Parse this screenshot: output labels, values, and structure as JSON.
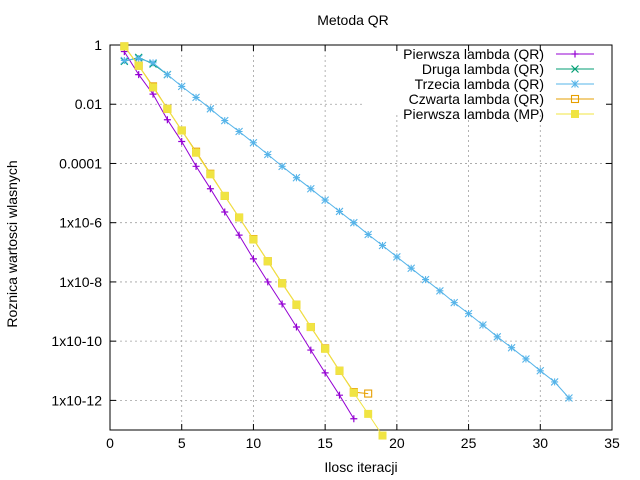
{
  "chart_data": {
    "type": "line",
    "title": "Metoda QR",
    "xlabel": "Ilosc iteracji",
    "ylabel": "Roznica wartosci wlasnych",
    "xlim": [
      0,
      35
    ],
    "ylim": [
      1e-13,
      1
    ],
    "yscale": "log",
    "grid": true,
    "legend_position": "top-right",
    "xticks": [
      0,
      5,
      10,
      15,
      20,
      25,
      30,
      35
    ],
    "xtick_labels": [
      "0",
      "5",
      "10",
      "15",
      "20",
      "25",
      "30",
      "35"
    ],
    "yticks": [
      1,
      0.01,
      0.0001,
      1e-06,
      1e-08,
      1e-10,
      1e-12
    ],
    "ytick_labels": [
      "1",
      "0.01",
      "0.0001",
      "1x10-6",
      "1x10-8",
      "1x10-10",
      "1x10-12"
    ],
    "series": [
      {
        "name": "Pierwsza lambda (QR)",
        "color": "#9400d3",
        "marker": "plus",
        "x": [
          1,
          2,
          3,
          4,
          5,
          6,
          7,
          8,
          9,
          10,
          11,
          12,
          13,
          14,
          15,
          16,
          17
        ],
        "y": [
          0.6,
          0.1,
          0.022,
          0.003,
          0.00055,
          8e-05,
          1.4e-05,
          2.3e-06,
          3.8e-07,
          6e-08,
          1e-08,
          1.8e-09,
          3e-10,
          5e-11,
          8.5e-12,
          1.5e-12,
          2.4e-13
        ]
      },
      {
        "name": "Druga lambda (QR)",
        "color": "#009e73",
        "marker": "cross",
        "x": [
          1,
          2,
          3,
          4
        ],
        "y": [
          0.28,
          0.38,
          0.23,
          0.1
        ]
      },
      {
        "name": "Trzecia lambda (QR)",
        "color": "#56b4e9",
        "marker": "star",
        "x": [
          1,
          2,
          3,
          4,
          5,
          6,
          7,
          8,
          9,
          10,
          11,
          12,
          13,
          14,
          15,
          16,
          17,
          18,
          19,
          20,
          21,
          22,
          23,
          24,
          25,
          26,
          27,
          28,
          29,
          30,
          31,
          32
        ],
        "y": [
          0.3,
          0.35,
          0.25,
          0.1,
          0.04,
          0.017,
          0.007,
          0.0028,
          0.0012,
          0.0005,
          0.0002,
          8e-05,
          3.3e-05,
          1.4e-05,
          5.8e-06,
          2.4e-06,
          1e-06,
          4e-07,
          1.7e-07,
          7e-08,
          2.9e-08,
          1.2e-08,
          5e-09,
          2e-09,
          8.5e-10,
          3.5e-10,
          1.4e-10,
          6e-11,
          2.5e-11,
          1e-11,
          4.2e-12,
          1.2e-12
        ]
      },
      {
        "name": "Czwarta lambda (QR)",
        "color": "#e69f00",
        "marker": "square-open",
        "x": [
          1,
          2,
          3,
          4,
          5,
          6,
          7,
          8,
          9,
          10,
          11,
          12,
          13,
          14,
          15,
          16,
          17,
          18
        ],
        "y": [
          0.9,
          0.2,
          0.04,
          0.007,
          0.0013,
          0.00025,
          4.5e-05,
          8e-06,
          1.5e-06,
          2.8e-07,
          5e-08,
          9e-09,
          1.7e-09,
          3e-10,
          5.7e-11,
          1e-11,
          1.9e-12,
          1.7e-12
        ]
      },
      {
        "name": "Pierwsza lambda (MP)",
        "color": "#f0e442",
        "marker": "square-filled",
        "x": [
          1,
          2,
          3,
          4,
          5,
          6,
          7,
          8,
          9,
          10,
          11,
          12,
          13,
          14,
          15,
          16,
          17,
          18,
          19
        ],
        "y": [
          0.9,
          0.2,
          0.037,
          0.007,
          0.0013,
          0.00023,
          4.3e-05,
          8e-06,
          1.5e-06,
          2.7e-07,
          5e-08,
          9e-09,
          1.7e-09,
          3e-10,
          5.5e-11,
          1e-11,
          1.8e-12,
          3.5e-13,
          6.5e-14
        ]
      }
    ]
  }
}
